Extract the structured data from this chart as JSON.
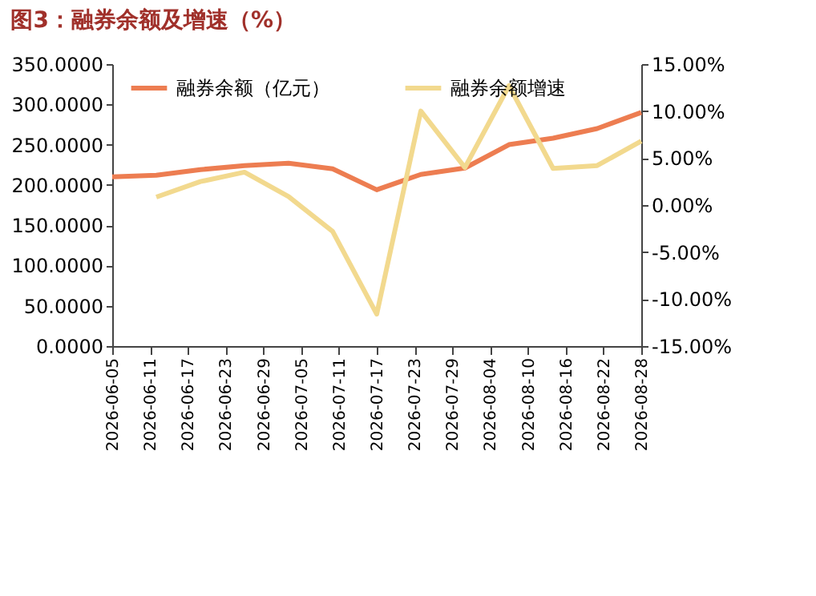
{
  "chart_data": {
    "type": "line",
    "title": "图3：融券余额及增速（%）",
    "x": [
      "2026-06-05",
      "2026-06-12",
      "2026-06-19",
      "2026-06-26",
      "2026-07-03",
      "2026-07-10",
      "2026-07-17",
      "2026-07-24",
      "2026-07-31",
      "2026-08-07",
      "2026-08-14",
      "2026-08-21",
      "2026-08-28"
    ],
    "series": [
      {
        "name": "融券余额（亿元）",
        "color": "#ed7d51",
        "values": [
          210,
          212,
          219,
          224,
          227,
          220,
          194,
          213,
          221,
          250,
          258,
          270,
          290
        ]
      },
      {
        "name": "融券余额增速",
        "color": "#f2d98e",
        "axis": "y2",
        "values": [
          null,
          0.85,
          2.5,
          3.5,
          0.9,
          -2.8,
          -11.6,
          10.0,
          4.0,
          12.7,
          3.9,
          4.2,
          6.8
        ]
      }
    ],
    "xlim": [
      "2026-06-05",
      "2026-08-28"
    ],
    "xticks": [
      "2026-06-05",
      "2026-06-11",
      "2026-06-17",
      "2026-06-23",
      "2026-06-29",
      "2026-07-05",
      "2026-07-11",
      "2026-07-17",
      "2026-07-23",
      "2026-07-29",
      "2026-08-04",
      "2026-08-10",
      "2026-08-16",
      "2026-08-22",
      "2026-08-28"
    ],
    "ylim": [
      0,
      350
    ],
    "yticks": [
      {
        "value": 0,
        "label": "0.0000"
      },
      {
        "value": 50,
        "label": "50.0000"
      },
      {
        "value": 100,
        "label": "100.0000"
      },
      {
        "value": 150,
        "label": "150.0000"
      },
      {
        "value": 200,
        "label": "200.0000"
      },
      {
        "value": 250,
        "label": "250.0000"
      },
      {
        "value": 300,
        "label": "300.0000"
      },
      {
        "value": 350,
        "label": "350.0000"
      }
    ],
    "y2lim": [
      -15,
      15
    ],
    "y2ticks": [
      {
        "value": -15,
        "label": "-15.00%"
      },
      {
        "value": -10,
        "label": "-10.00%"
      },
      {
        "value": -5,
        "label": "-5.00%"
      },
      {
        "value": 0,
        "label": "0.00%"
      },
      {
        "value": 5,
        "label": "5.00%"
      },
      {
        "value": 10,
        "label": "10.00%"
      },
      {
        "value": 15,
        "label": "15.00%"
      }
    ],
    "legend": "top",
    "grid": false,
    "marker": "none",
    "line_style": "solid"
  }
}
